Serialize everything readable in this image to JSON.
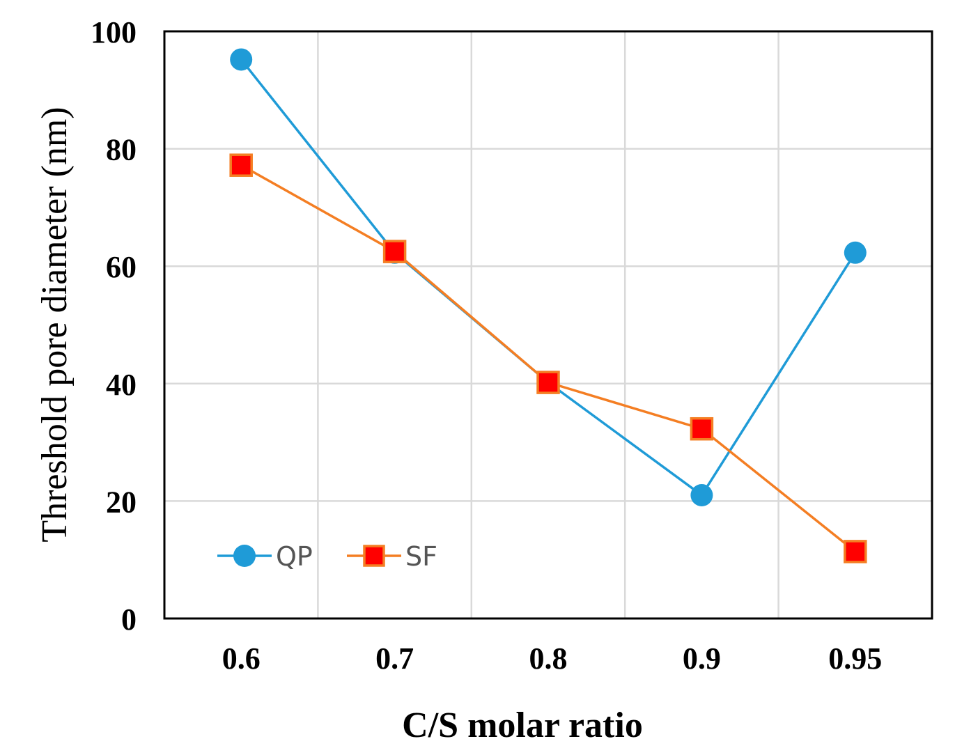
{
  "chart_data": {
    "type": "line",
    "title": "",
    "xlabel": "C/S molar ratio",
    "ylabel": "Threshold pore diameter (nm)",
    "categories": [
      "0.6",
      "0.7",
      "0.8",
      "0.9",
      "0.95"
    ],
    "ylim": [
      0,
      100
    ],
    "yticks": [
      "0",
      "20",
      "40",
      "60",
      "80",
      "100"
    ],
    "grid": true,
    "legend_position": "bottom-left",
    "series": [
      {
        "name": "QP",
        "marker": "circle",
        "color": "#1f9bd7",
        "values": [
          95.2,
          62.3,
          40.2,
          21.0,
          62.3
        ]
      },
      {
        "name": "SF",
        "marker": "square",
        "color": "#f47e23",
        "marker_fill": "#ff0000",
        "values": [
          77.2,
          62.5,
          40.2,
          32.3,
          11.4
        ]
      }
    ]
  }
}
